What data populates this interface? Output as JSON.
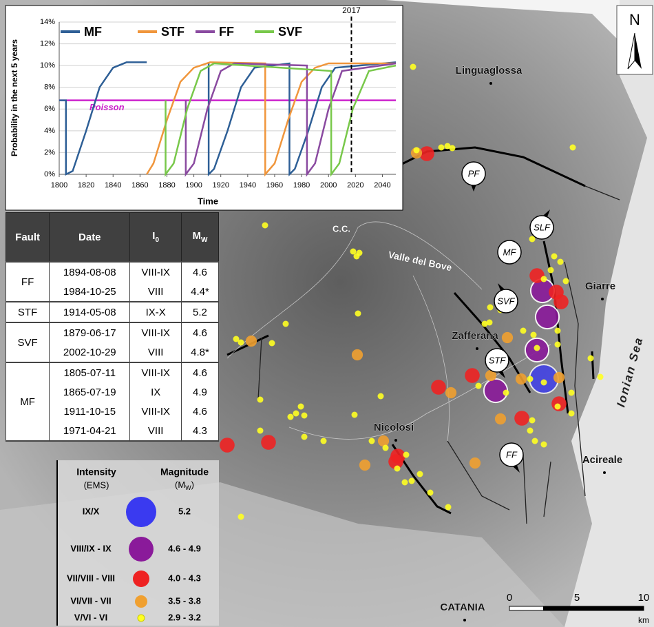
{
  "chart_data": {
    "type": "line",
    "ylabel": "Probability in the next 5 years",
    "xlabel": "Time",
    "xlim": [
      1800,
      2050
    ],
    "xticks": [
      1800,
      1820,
      1840,
      1860,
      1880,
      1900,
      1920,
      1940,
      1960,
      1980,
      2000,
      2020,
      2040
    ],
    "ylim": [
      0,
      14
    ],
    "yticks": [
      {
        "value": 0,
        "label": "0%"
      },
      {
        "value": 2,
        "label": "2%"
      },
      {
        "value": 4,
        "label": "4%"
      },
      {
        "value": 6,
        "label": "6%"
      },
      {
        "value": 8,
        "label": "8%"
      },
      {
        "value": 10,
        "label": "10%"
      },
      {
        "value": 12,
        "label": "12%"
      },
      {
        "value": 14,
        "label": "14%"
      }
    ],
    "grid": true,
    "series": [
      {
        "name": "MF",
        "color": "#2e5f96",
        "x": [
          1800,
          1805,
          1805,
          1810,
          1820,
          1830,
          1840,
          1850,
          1865,
          1865,
          1911,
          1911,
          1915,
          1925,
          1935,
          1945,
          1971,
          1971,
          1975,
          1985,
          1995,
          2005,
          2050
        ],
        "values": [
          6.8,
          6.8,
          0,
          0.3,
          4,
          8,
          9.8,
          10.3,
          10.3,
          null,
          10.3,
          0,
          0.5,
          4,
          8,
          9.8,
          10.2,
          0,
          0.5,
          4,
          8,
          9.8,
          10.3
        ]
      },
      {
        "name": "STF",
        "color": "#f0963c",
        "x": [
          1865,
          1870,
          1880,
          1890,
          1900,
          1912,
          1953,
          1953,
          1960,
          1970,
          1980,
          1990,
          2000,
          2050
        ],
        "values": [
          0,
          1,
          5,
          8.5,
          9.8,
          10.3,
          10.2,
          0,
          1,
          5,
          8.5,
          9.8,
          10.2,
          10.2
        ]
      },
      {
        "name": "FF",
        "color": "#8a4aa0",
        "x": [
          1894,
          1894,
          1900,
          1910,
          1920,
          1930,
          1984,
          1984,
          1990,
          2000,
          2010,
          2050
        ],
        "values": [
          6.8,
          0,
          1,
          6,
          9.5,
          10.2,
          10,
          0,
          1,
          6,
          9.5,
          10.2
        ]
      },
      {
        "name": "SVF",
        "color": "#78c84a",
        "x": [
          1879,
          1879,
          1885,
          1895,
          1905,
          1915,
          2002,
          2002,
          2008,
          2018,
          2030,
          2050
        ],
        "values": [
          6.8,
          0,
          1,
          6,
          9.5,
          10.2,
          9.5,
          0,
          1,
          6,
          9.5,
          10
        ]
      }
    ],
    "reference_line": {
      "label": "Poisson",
      "value": 6.8,
      "color": "#cc22cc"
    },
    "marker": 2017
  },
  "table": {
    "headers": [
      {
        "text": "Fault"
      },
      {
        "text": "Date"
      },
      {
        "text": "I",
        "sub": "0"
      },
      {
        "text": "M",
        "sub": "W"
      }
    ],
    "groups": [
      {
        "fault": "FF",
        "rows": [
          [
            "1894-08-08",
            "VIII-IX",
            "4.6"
          ],
          [
            "1984-10-25",
            "VIII",
            "4.4*"
          ]
        ]
      },
      {
        "fault": "STF",
        "rows": [
          [
            "1914-05-08",
            "IX-X",
            "5.2"
          ]
        ]
      },
      {
        "fault": "SVF",
        "rows": [
          [
            "1879-06-17",
            "VIII-IX",
            "4.6"
          ],
          [
            "2002-10-29",
            "VIII",
            "4.8*"
          ]
        ]
      },
      {
        "fault": "MF",
        "rows": [
          [
            "1805-07-11",
            "VIII-IX",
            "4.6"
          ],
          [
            "1865-07-19",
            "IX",
            "4.9"
          ],
          [
            "1911-10-15",
            "VIII-IX",
            "4.6"
          ],
          [
            "1971-04-21",
            "VIII",
            "4.3"
          ]
        ]
      }
    ]
  },
  "legend": {
    "intensity_title": "Intensity",
    "intensity_unit": "(EMS)",
    "magnitude_title": "Magnitude",
    "magnitude_unit": {
      "text": "(M",
      "sub": "W",
      "end": ")"
    },
    "items": [
      {
        "intensity": "IX/X",
        "magnitude": "5.2",
        "color": "#3a3af0"
      },
      {
        "intensity": "VIII/IX - IX",
        "magnitude": "4.6 - 4.9",
        "color": "#8a1a9a"
      },
      {
        "intensity": "VII/VIII - VIII",
        "magnitude": "4.0 - 4.3",
        "color": "#ee2222"
      },
      {
        "intensity": "VI/VII - VII",
        "magnitude": "3.5 - 3.8",
        "color": "#f0a030"
      },
      {
        "intensity": "V/VI - VI",
        "magnitude": "2.9 - 3.2",
        "color": "#ffff22"
      }
    ]
  },
  "map": {
    "places": [
      {
        "name": "Linguaglossa"
      },
      {
        "name": "Giarre"
      },
      {
        "name": "Zafferana"
      },
      {
        "name": "Nicolosi"
      },
      {
        "name": "Acireale"
      },
      {
        "name": "CATANIA"
      },
      {
        "name": "C.C."
      },
      {
        "name": "Valle del Bove"
      }
    ],
    "sea": "Ionian Sea",
    "faults": [
      "PF",
      "SLF",
      "MF",
      "SVF",
      "STF",
      "FF"
    ],
    "north": "N",
    "scale": {
      "labels": [
        "0",
        "5",
        "10"
      ],
      "unit": "km"
    }
  }
}
